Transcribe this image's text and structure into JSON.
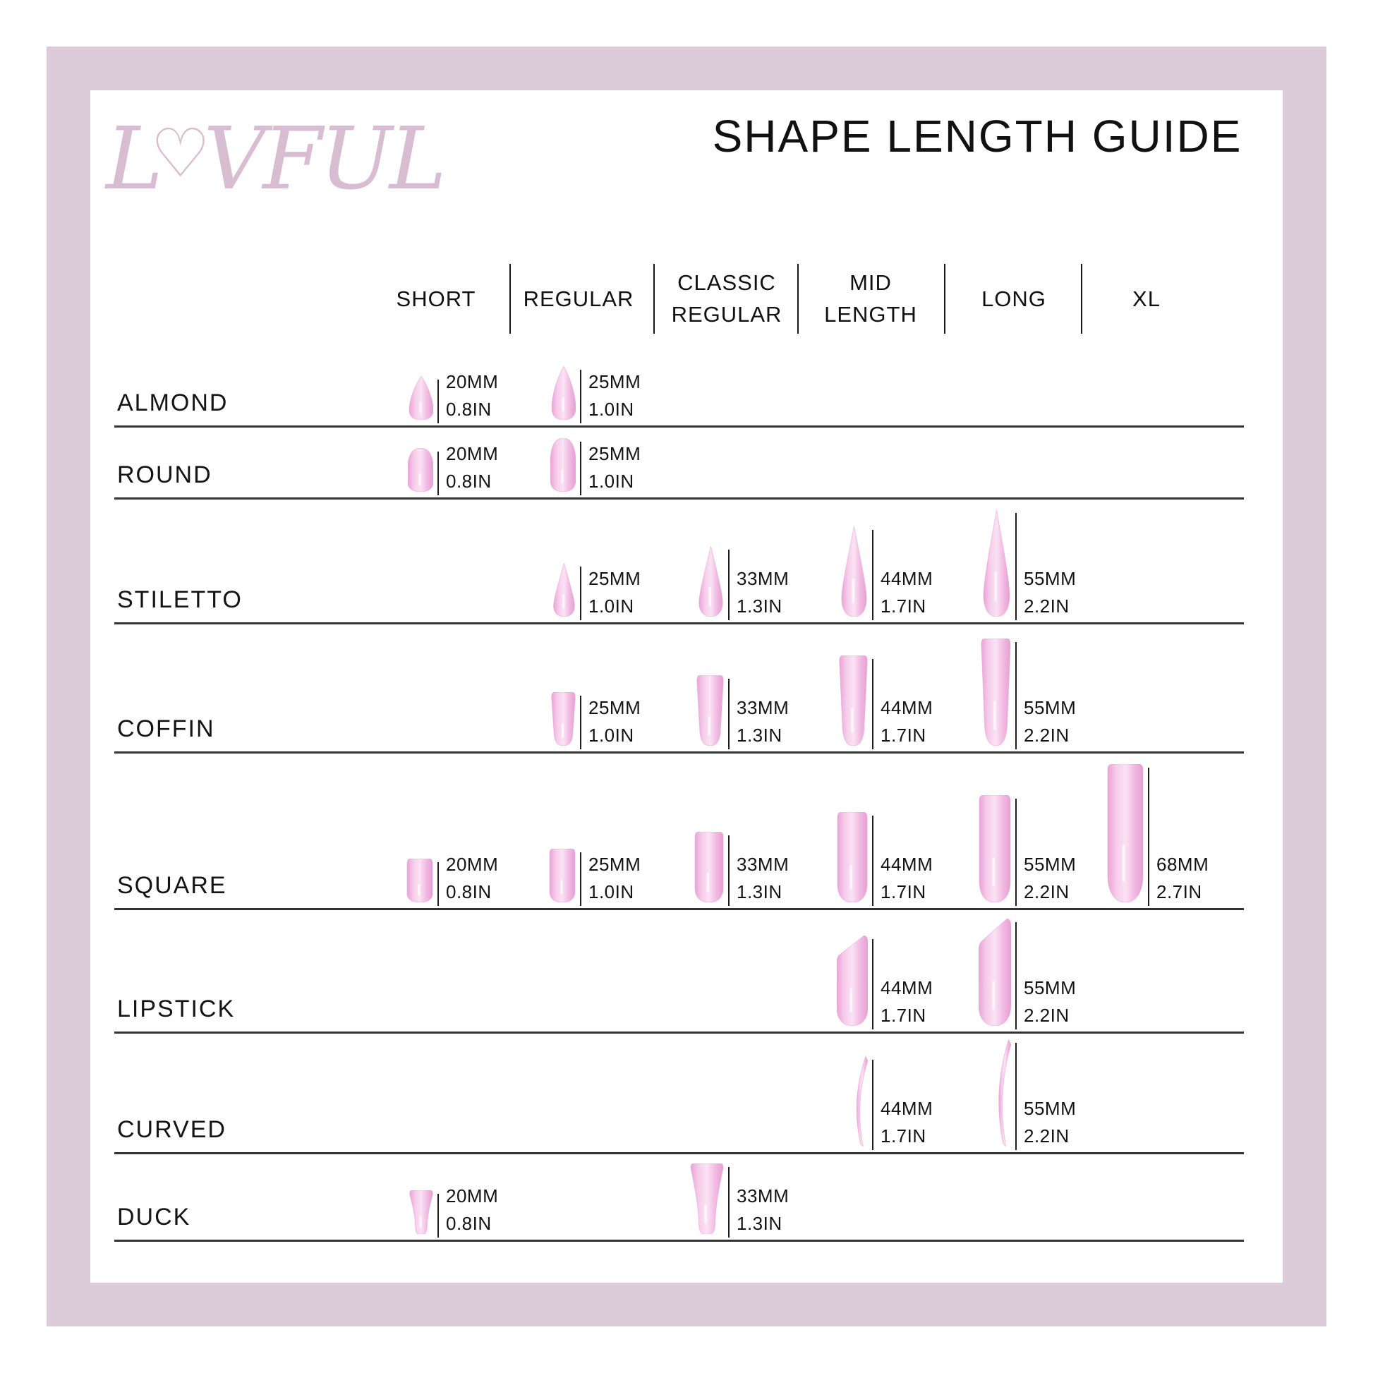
{
  "brand": {
    "name": "LOVFUL",
    "prefix": "L",
    "heart": "♡",
    "suffix": "VFUL"
  },
  "title": "SHAPE LENGTH GUIDE",
  "columns": [
    {
      "id": "SHORT",
      "label": "SHORT"
    },
    {
      "id": "REGULAR",
      "label": "REGULAR"
    },
    {
      "id": "CLASSIC REGULAR",
      "label": "CLASSIC\nREGULAR"
    },
    {
      "id": "MID LENGTH",
      "label": "MID\nLENGTH"
    },
    {
      "id": "LONG",
      "label": "LONG"
    },
    {
      "id": "XL",
      "label": "XL"
    }
  ],
  "rows": [
    {
      "label": "ALMOND",
      "cells": [
        {
          "column": "SHORT",
          "mm": "20MM",
          "inch": "0.8IN"
        },
        {
          "column": "REGULAR",
          "mm": "25MM",
          "inch": "1.0IN"
        }
      ]
    },
    {
      "label": "ROUND",
      "cells": [
        {
          "column": "SHORT",
          "mm": "20MM",
          "inch": "0.8IN"
        },
        {
          "column": "REGULAR",
          "mm": "25MM",
          "inch": "1.0IN"
        }
      ]
    },
    {
      "label": "STILETTO",
      "cells": [
        {
          "column": "REGULAR",
          "mm": "25MM",
          "inch": "1.0IN"
        },
        {
          "column": "CLASSIC REGULAR",
          "mm": "33MM",
          "inch": "1.3IN"
        },
        {
          "column": "MID LENGTH",
          "mm": "44MM",
          "inch": "1.7IN"
        },
        {
          "column": "LONG",
          "mm": "55MM",
          "inch": "2.2IN"
        }
      ]
    },
    {
      "label": "COFFIN",
      "cells": [
        {
          "column": "REGULAR",
          "mm": "25MM",
          "inch": "1.0IN"
        },
        {
          "column": "CLASSIC REGULAR",
          "mm": "33MM",
          "inch": "1.3IN"
        },
        {
          "column": "MID LENGTH",
          "mm": "44MM",
          "inch": "1.7IN"
        },
        {
          "column": "LONG",
          "mm": "55MM",
          "inch": "2.2IN"
        }
      ]
    },
    {
      "label": "SQUARE",
      "cells": [
        {
          "column": "SHORT",
          "mm": "20MM",
          "inch": "0.8IN"
        },
        {
          "column": "REGULAR",
          "mm": "25MM",
          "inch": "1.0IN"
        },
        {
          "column": "CLASSIC REGULAR",
          "mm": "33MM",
          "inch": "1.3IN"
        },
        {
          "column": "MID LENGTH",
          "mm": "44MM",
          "inch": "1.7IN"
        },
        {
          "column": "LONG",
          "mm": "55MM",
          "inch": "2.2IN"
        },
        {
          "column": "XL",
          "mm": "68MM",
          "inch": "2.7IN"
        }
      ]
    },
    {
      "label": "LIPSTICK",
      "cells": [
        {
          "column": "MID LENGTH",
          "mm": "44MM",
          "inch": "1.7IN"
        },
        {
          "column": "LONG",
          "mm": "55MM",
          "inch": "2.2IN"
        }
      ]
    },
    {
      "label": "CURVED",
      "cells": [
        {
          "column": "MID LENGTH",
          "mm": "44MM",
          "inch": "1.7IN"
        },
        {
          "column": "LONG",
          "mm": "55MM",
          "inch": "2.2IN"
        }
      ]
    },
    {
      "label": "DUCK",
      "cells": [
        {
          "column": "SHORT",
          "mm": "20MM",
          "inch": "0.8IN"
        },
        {
          "column": "CLASSIC REGULAR",
          "mm": "33MM",
          "inch": "1.3IN"
        }
      ]
    }
  ],
  "colors": {
    "frame_pink": "#dccbd9",
    "logo_pink": "#d8bdd2",
    "nail_edge": "#e9a4d7",
    "nail_light": "#fbe2f4",
    "text_black": "#161616",
    "rule_gray": "#333333"
  }
}
